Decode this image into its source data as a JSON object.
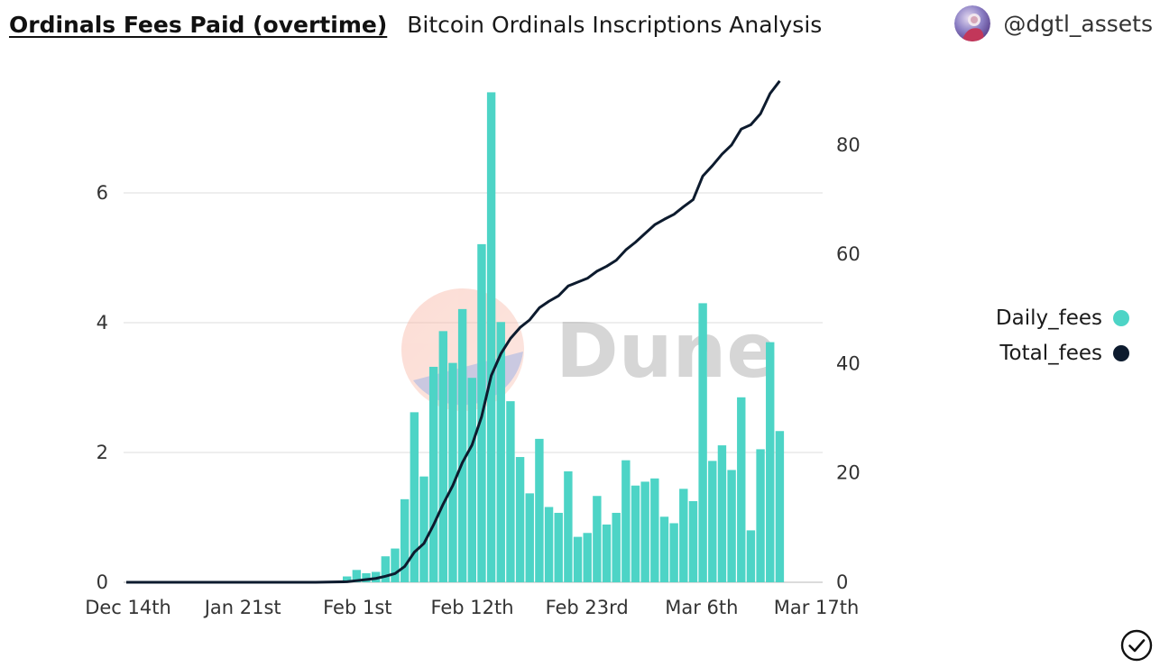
{
  "header": {
    "title": "Ordinals Fees Paid (overtime)",
    "subtitle": "Bitcoin Ordinals Inscriptions Analysis",
    "author": "@dgtl_assets"
  },
  "watermark": {
    "text": "Dune"
  },
  "colors": {
    "daily_fees": "#4dd4c6",
    "total_fees": "#0d1b2e",
    "gridline": "#e8e8e8",
    "axis_text": "#333333"
  },
  "chart_data": {
    "type": "bar",
    "x_tick_labels": [
      "Dec 14th",
      "Jan 21st",
      "Feb 1st",
      "Feb 12th",
      "Feb 23rd",
      "Mar 6th",
      "Mar 17th"
    ],
    "y_left": {
      "ticks": [
        0,
        2,
        4,
        6
      ],
      "ylim": [
        0,
        7.75
      ]
    },
    "y_right": {
      "ticks": [
        0,
        20,
        40,
        60,
        80
      ],
      "ylim": [
        0,
        92
      ]
    },
    "legend_position": "right",
    "grid": true,
    "series": [
      {
        "name": "Daily_fees",
        "type": "bar",
        "axis": "left",
        "values": [
          0.09,
          0.19,
          0.14,
          0.16,
          0.4,
          0.52,
          1.28,
          2.62,
          1.63,
          3.32,
          3.87,
          3.38,
          4.21,
          3.15,
          5.21,
          7.55,
          4.01,
          2.79,
          1.93,
          1.37,
          2.21,
          1.16,
          1.07,
          1.71,
          0.7,
          0.76,
          1.33,
          0.89,
          1.07,
          1.88,
          1.49,
          1.55,
          1.6,
          1.01,
          0.91,
          1.44,
          1.25,
          4.3,
          1.87,
          2.11,
          1.73,
          2.85,
          0.8,
          2.05,
          3.7,
          2.33
        ]
      },
      {
        "name": "Total_fees",
        "type": "line",
        "axis": "right",
        "values": [
          0.1,
          0.3,
          0.5,
          0.7,
          1.1,
          1.6,
          2.9,
          5.5,
          7.1,
          10.5,
          14.3,
          17.7,
          21.9,
          25.1,
          30.3,
          37.8,
          41.8,
          44.6,
          46.6,
          48.0,
          50.2,
          51.4,
          52.4,
          54.2,
          54.9,
          55.6,
          56.9,
          57.8,
          58.9,
          60.8,
          62.2,
          63.8,
          65.4,
          66.4,
          67.3,
          68.7,
          70.0,
          74.3,
          76.2,
          78.3,
          80.0,
          82.9,
          83.7,
          85.7,
          89.4,
          91.7
        ]
      }
    ]
  }
}
